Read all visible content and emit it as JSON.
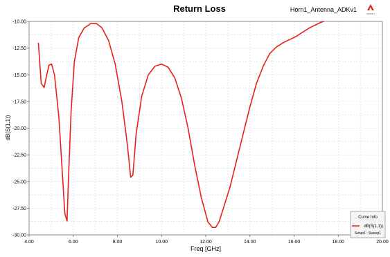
{
  "window": {
    "project_title": "Horn1_Antenna_ADKv1",
    "logo_text": "ANSOFT"
  },
  "chart_data": {
    "type": "line",
    "title": "Return Loss",
    "xlabel": "Freq [GHz]",
    "ylabel": "dB(S(1,1))",
    "xlim": [
      4.0,
      20.0
    ],
    "ylim": [
      -30.0,
      -10.0
    ],
    "x_ticks": [
      "4.00",
      "6.00",
      "8.00",
      "10.00",
      "12.00",
      "14.00",
      "16.00",
      "18.00",
      "20.00"
    ],
    "y_ticks": [
      "-10.00",
      "-12.50",
      "-15.00",
      "-17.50",
      "-20.00",
      "-22.50",
      "-25.00",
      "-27.50",
      "-30.00"
    ],
    "grid": true,
    "legend": {
      "title": "Curve Info",
      "placement": "bottom-right",
      "entries": [
        {
          "name": "dB(S(1,1))",
          "sub": "Setup1 : Sweep1",
          "color": "#e8201b"
        }
      ]
    },
    "series": [
      {
        "name": "dB(S(1,1))",
        "color": "#e8201b",
        "x": [
          4.42,
          4.55,
          4.68,
          4.8,
          4.9,
          5.02,
          5.15,
          5.35,
          5.5,
          5.62,
          5.72,
          5.78,
          5.9,
          6.05,
          6.25,
          6.5,
          6.8,
          7.05,
          7.3,
          7.6,
          7.9,
          8.2,
          8.45,
          8.6,
          8.7,
          8.85,
          9.1,
          9.4,
          9.7,
          10.0,
          10.3,
          10.6,
          10.9,
          11.2,
          11.5,
          11.8,
          12.1,
          12.3,
          12.45,
          12.6,
          12.8,
          13.1,
          13.4,
          13.7,
          14.0,
          14.3,
          14.6,
          14.9,
          15.2,
          15.5,
          15.8,
          16.1,
          16.4,
          16.7,
          17.0,
          17.2,
          17.35
        ],
        "y": [
          -12.0,
          -15.8,
          -16.2,
          -15.0,
          -14.1,
          -14.0,
          -15.0,
          -19.0,
          -24.0,
          -28.0,
          -28.7,
          -25.0,
          -18.5,
          -13.8,
          -11.5,
          -10.6,
          -10.2,
          -10.2,
          -10.6,
          -11.8,
          -14.0,
          -17.5,
          -21.5,
          -24.6,
          -24.4,
          -20.5,
          -17.0,
          -15.0,
          -14.2,
          -14.0,
          -14.3,
          -15.3,
          -17.2,
          -20.0,
          -23.5,
          -26.5,
          -28.8,
          -29.3,
          -29.3,
          -28.8,
          -27.5,
          -25.5,
          -23.0,
          -20.5,
          -18.0,
          -15.8,
          -14.2,
          -13.0,
          -12.4,
          -12.0,
          -11.7,
          -11.4,
          -11.0,
          -10.6,
          -10.3,
          -10.1,
          -10.0
        ]
      }
    ]
  }
}
